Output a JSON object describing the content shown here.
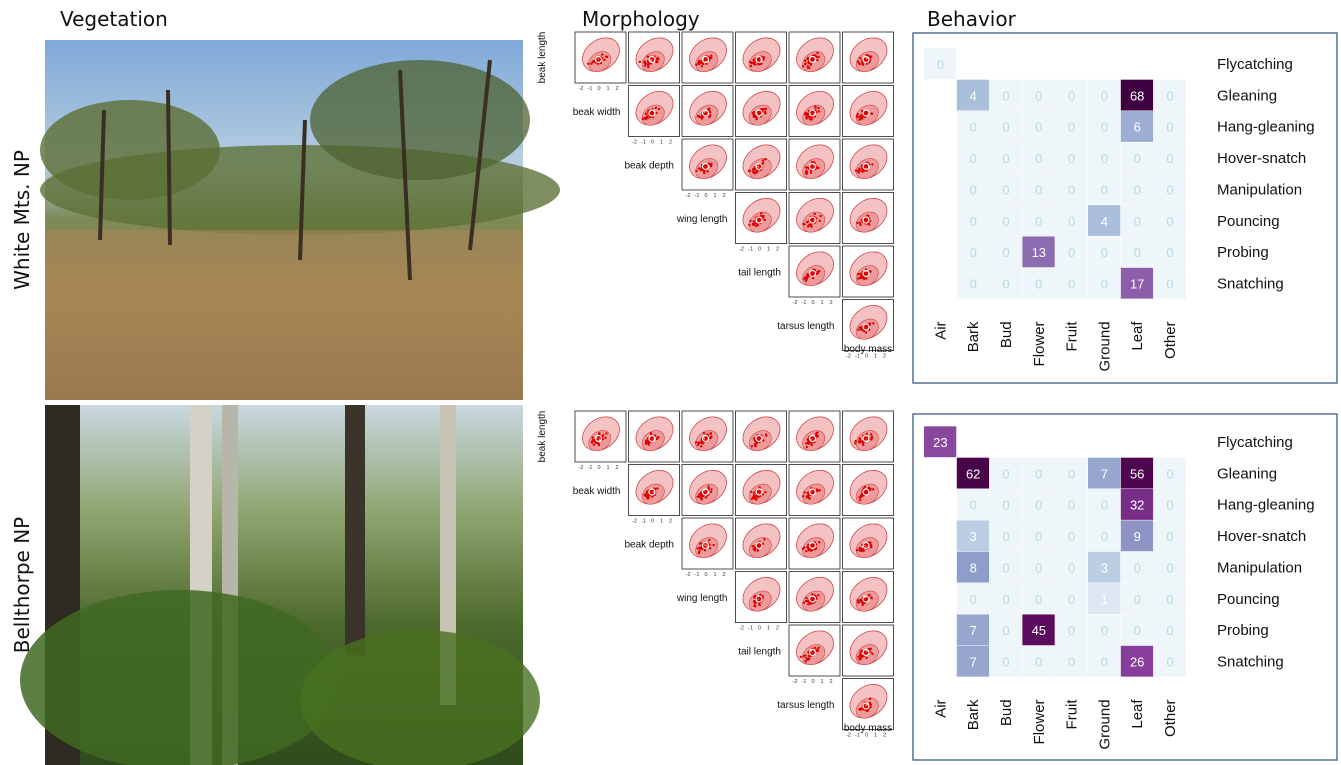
{
  "headers": {
    "vegetation": "Vegetation",
    "morphology": "Morphology",
    "behavior": "Behavior"
  },
  "traits": [
    "beak length",
    "beak width",
    "beak depth",
    "wing length",
    "tail length",
    "tarsus length",
    "body mass"
  ],
  "ticks": [
    "-2",
    "-1",
    "0",
    "1",
    "2"
  ],
  "behaviors": [
    "Flycatching",
    "Gleaning",
    "Hang-gleaning",
    "Hover-snatch",
    "Manipulation",
    "Pouncing",
    "Probing",
    "Snatching"
  ],
  "substrates": [
    "Air",
    "Bark",
    "Bud",
    "Flower",
    "Fruit",
    "Ground",
    "Leaf",
    "Other"
  ],
  "sites": [
    {
      "name": "White Mts. NP",
      "counts": [
        [
          0,
          null,
          null,
          null,
          null,
          null,
          null,
          null
        ],
        [
          null,
          4,
          0,
          0,
          0,
          0,
          68,
          0
        ],
        [
          null,
          0,
          0,
          0,
          0,
          0,
          6,
          0
        ],
        [
          null,
          0,
          0,
          0,
          0,
          0,
          0,
          0
        ],
        [
          null,
          0,
          0,
          0,
          0,
          0,
          0,
          0
        ],
        [
          null,
          0,
          0,
          0,
          0,
          4,
          0,
          0
        ],
        [
          null,
          0,
          0,
          13,
          0,
          0,
          0,
          0
        ],
        [
          null,
          0,
          0,
          0,
          0,
          0,
          17,
          0
        ]
      ]
    },
    {
      "name": "Bellthorpe NP",
      "counts": [
        [
          23,
          null,
          null,
          null,
          null,
          null,
          null,
          null
        ],
        [
          null,
          62,
          0,
          0,
          0,
          7,
          56,
          0
        ],
        [
          null,
          0,
          0,
          0,
          0,
          0,
          32,
          0
        ],
        [
          null,
          3,
          0,
          0,
          0,
          0,
          9,
          0
        ],
        [
          null,
          8,
          0,
          0,
          0,
          3,
          0,
          0
        ],
        [
          null,
          0,
          0,
          0,
          0,
          1,
          0,
          0
        ],
        [
          null,
          7,
          0,
          45,
          0,
          0,
          0,
          0
        ],
        [
          null,
          7,
          0,
          0,
          0,
          0,
          26,
          0
        ]
      ]
    }
  ]
}
